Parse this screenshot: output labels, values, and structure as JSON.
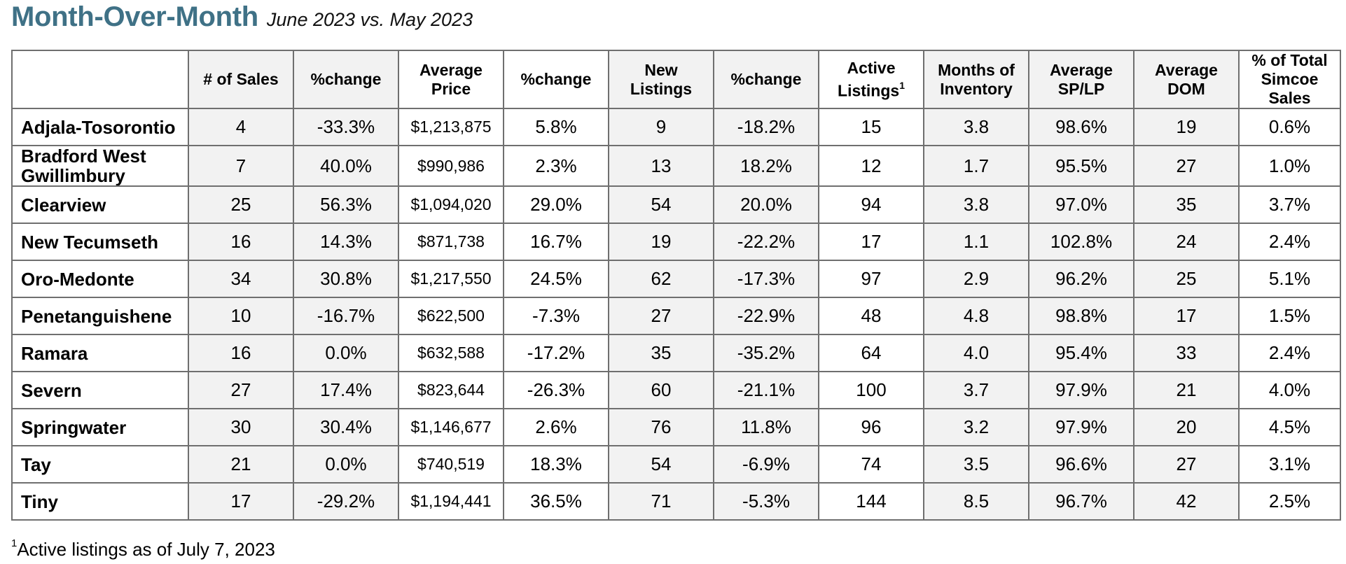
{
  "title": {
    "main": "Month-Over-Month",
    "sub": "June 2023 vs. May 2023"
  },
  "columns": [
    "",
    "# of Sales",
    "%change",
    "Average Price",
    "%change",
    "New Listings",
    "%change",
    "Active Listings",
    "Months of Inventory",
    "Average SP/LP",
    "Average DOM",
    "% of Total Simcoe Sales"
  ],
  "active_listings_footnote_marker": "1",
  "rows": [
    [
      "Adjala-Tosorontio",
      "4",
      "-33.3%",
      "$1,213,875",
      "5.8%",
      "9",
      "-18.2%",
      "15",
      "3.8",
      "98.6%",
      "19",
      "0.6%"
    ],
    [
      "Bradford West Gwillimbury",
      "7",
      "40.0%",
      "$990,986",
      "2.3%",
      "13",
      "18.2%",
      "12",
      "1.7",
      "95.5%",
      "27",
      "1.0%"
    ],
    [
      "Clearview",
      "25",
      "56.3%",
      "$1,094,020",
      "29.0%",
      "54",
      "20.0%",
      "94",
      "3.8",
      "97.0%",
      "35",
      "3.7%"
    ],
    [
      "New Tecumseth",
      "16",
      "14.3%",
      "$871,738",
      "16.7%",
      "19",
      "-22.2%",
      "17",
      "1.1",
      "102.8%",
      "24",
      "2.4%"
    ],
    [
      "Oro-Medonte",
      "34",
      "30.8%",
      "$1,217,550",
      "24.5%",
      "62",
      "-17.3%",
      "97",
      "2.9",
      "96.2%",
      "25",
      "5.1%"
    ],
    [
      "Penetanguishene",
      "10",
      "-16.7%",
      "$622,500",
      "-7.3%",
      "27",
      "-22.9%",
      "48",
      "4.8",
      "98.8%",
      "17",
      "1.5%"
    ],
    [
      "Ramara",
      "16",
      "0.0%",
      "$632,588",
      "-17.2%",
      "35",
      "-35.2%",
      "64",
      "4.0",
      "95.4%",
      "33",
      "2.4%"
    ],
    [
      "Severn",
      "27",
      "17.4%",
      "$823,644",
      "-26.3%",
      "60",
      "-21.1%",
      "100",
      "3.7",
      "97.9%",
      "21",
      "4.0%"
    ],
    [
      "Springwater",
      "30",
      "30.4%",
      "$1,146,677",
      "2.6%",
      "76",
      "11.8%",
      "96",
      "3.2",
      "97.9%",
      "20",
      "4.5%"
    ],
    [
      "Tay",
      "21",
      "0.0%",
      "$740,519",
      "18.3%",
      "54",
      "-6.9%",
      "74",
      "3.5",
      "96.6%",
      "27",
      "3.1%"
    ],
    [
      "Tiny",
      "17",
      "-29.2%",
      "$1,194,441",
      "36.5%",
      "71",
      "-5.3%",
      "144",
      "8.5",
      "96.7%",
      "42",
      "2.5%"
    ]
  ],
  "footnote": {
    "marker": "1",
    "text": "Active listings as of July 7, 2023"
  },
  "colors": {
    "title": "#3f7186",
    "shaded_cell": "#f2f2f2",
    "border": "#6f6f6f"
  }
}
